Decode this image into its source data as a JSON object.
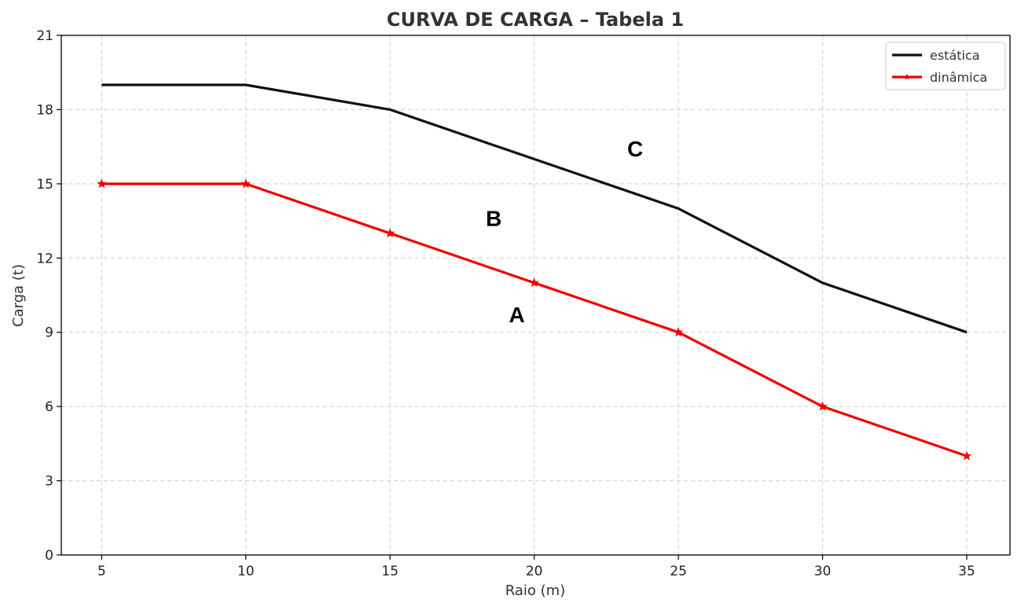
{
  "chart_data": {
    "type": "line",
    "title": "CURVA DE CARGA – Tabela 1",
    "xlabel": "Raio (m)",
    "ylabel": "Carga (t)",
    "x": [
      5,
      10,
      15,
      20,
      25,
      30,
      35
    ],
    "xticks": [
      "5",
      "10",
      "15",
      "20",
      "25",
      "30",
      "35"
    ],
    "yticks": [
      "0",
      "3",
      "6",
      "9",
      "12",
      "15",
      "18",
      "21"
    ],
    "xlim": [
      3.6,
      36.5
    ],
    "ylim": [
      0,
      21
    ],
    "grid": true,
    "legend_position": "top-right",
    "series": [
      {
        "name": "estática",
        "values": [
          19,
          19,
          18,
          16,
          14,
          11,
          9
        ],
        "color": "#111111",
        "marker": "none"
      },
      {
        "name": "dinâmica",
        "values": [
          15,
          15,
          13,
          11,
          9,
          6,
          4
        ],
        "color": "#ee0000",
        "marker": "star"
      }
    ],
    "annotations": [
      {
        "text": "C",
        "x": 23.5,
        "y": 16.1
      },
      {
        "text": "B",
        "x": 18.6,
        "y": 13.3
      },
      {
        "text": "A",
        "x": 19.4,
        "y": 9.4
      }
    ]
  }
}
